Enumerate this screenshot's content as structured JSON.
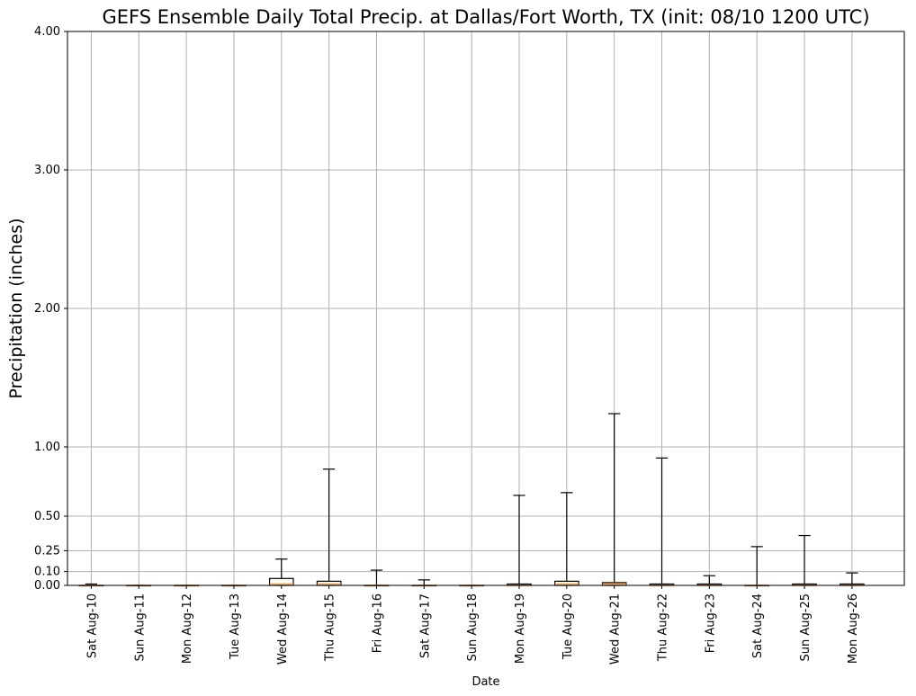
{
  "chart_data": {
    "type": "box",
    "title": "GEFS Ensemble Daily Total Precip. at Dallas/Fort Worth, TX (init: 08/10 1200 UTC)",
    "xlabel": "Date",
    "ylabel": "Precipitation (inches)",
    "ylim": [
      0,
      4.0
    ],
    "yticks": [
      0.0,
      0.1,
      0.25,
      0.5,
      1.0,
      2.0,
      3.0,
      4.0
    ],
    "ytick_labels": [
      "0.00",
      "0.10",
      "0.25",
      "0.50",
      "1.00",
      "2.00",
      "3.00",
      "4.00"
    ],
    "grid": true,
    "box_fill_color": "#ffffff",
    "median_color": "#ff9e4a",
    "categories": [
      "Sat Aug-10",
      "Sun Aug-11",
      "Mon Aug-12",
      "Tue Aug-13",
      "Wed Aug-14",
      "Thu Aug-15",
      "Fri Aug-16",
      "Sat Aug-17",
      "Sun Aug-18",
      "Mon Aug-19",
      "Tue Aug-20",
      "Wed Aug-21",
      "Thu Aug-22",
      "Fri Aug-23",
      "Sat Aug-24",
      "Sun Aug-25",
      "Mon Aug-26"
    ],
    "boxes": [
      {
        "whislo": 0,
        "q1": 0,
        "med": 0,
        "q3": 0,
        "whishi": 0.01
      },
      {
        "whislo": 0,
        "q1": 0,
        "med": 0,
        "q3": 0,
        "whishi": 0
      },
      {
        "whislo": 0,
        "q1": 0,
        "med": 0,
        "q3": 0,
        "whishi": 0
      },
      {
        "whislo": 0,
        "q1": 0,
        "med": 0,
        "q3": 0,
        "whishi": 0
      },
      {
        "whislo": 0,
        "q1": 0,
        "med": 0.01,
        "q3": 0.05,
        "whishi": 0.19
      },
      {
        "whislo": 0,
        "q1": 0,
        "med": 0.01,
        "q3": 0.03,
        "whishi": 0.84
      },
      {
        "whislo": 0,
        "q1": 0,
        "med": 0,
        "q3": 0,
        "whishi": 0.11
      },
      {
        "whislo": 0,
        "q1": 0,
        "med": 0,
        "q3": 0,
        "whishi": 0.04
      },
      {
        "whislo": 0,
        "q1": 0,
        "med": 0,
        "q3": 0,
        "whishi": 0
      },
      {
        "whislo": 0,
        "q1": 0,
        "med": 0,
        "q3": 0.01,
        "whishi": 0.65
      },
      {
        "whislo": 0,
        "q1": 0,
        "med": 0.01,
        "q3": 0.03,
        "whishi": 0.67
      },
      {
        "whislo": 0,
        "q1": 0,
        "med": 0.01,
        "q3": 0.02,
        "whishi": 1.24
      },
      {
        "whislo": 0,
        "q1": 0,
        "med": 0,
        "q3": 0.01,
        "whishi": 0.92
      },
      {
        "whislo": 0,
        "q1": 0,
        "med": 0,
        "q3": 0.01,
        "whishi": 0.07
      },
      {
        "whislo": 0,
        "q1": 0,
        "med": 0,
        "q3": 0,
        "whishi": 0.28
      },
      {
        "whislo": 0,
        "q1": 0,
        "med": 0,
        "q3": 0.01,
        "whishi": 0.36
      },
      {
        "whislo": 0,
        "q1": 0,
        "med": 0,
        "q3": 0.01,
        "whishi": 0.09
      }
    ]
  }
}
